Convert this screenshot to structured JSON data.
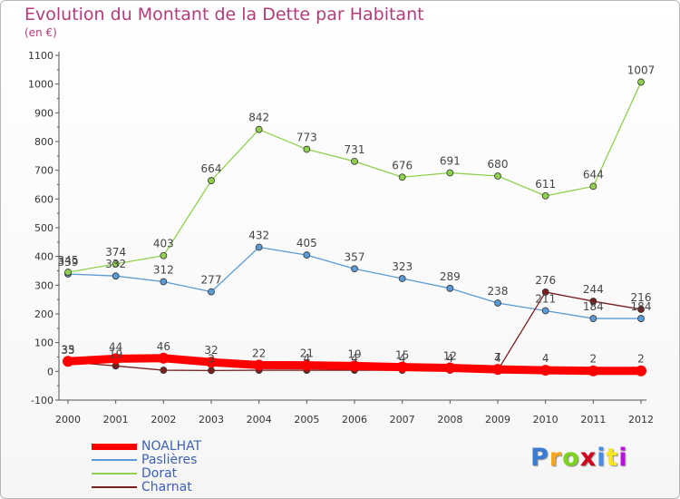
{
  "chart_data": {
    "type": "line",
    "title": "Evolution du Montant de la Dette par Habitant",
    "unit_label": "(en €)",
    "x": [
      "2000",
      "2001",
      "2002",
      "2003",
      "2004",
      "2005",
      "2006",
      "2007",
      "2008",
      "2009",
      "2010",
      "2011",
      "2012"
    ],
    "y_ticks": [
      -100,
      0,
      100,
      200,
      300,
      400,
      500,
      600,
      700,
      800,
      900,
      1000,
      1100
    ],
    "ylim": [
      -100,
      1100
    ],
    "grid": false,
    "legend_position": "bottom-left",
    "series": [
      {
        "name": "NOALHAT",
        "color": "#ff0000",
        "values": [
          35,
          44,
          46,
          32,
          22,
          21,
          19,
          15,
          12,
          7,
          4,
          2,
          2
        ],
        "labels": [
          "35",
          "44",
          "46",
          "32",
          "22",
          "21",
          "19",
          "15",
          "12",
          "7",
          "4",
          "2",
          "2"
        ]
      },
      {
        "name": "Paslières",
        "color": "#5b9bd5",
        "values": [
          339,
          332,
          312,
          277,
          432,
          405,
          357,
          323,
          289,
          238,
          211,
          184,
          184
        ],
        "labels": [
          "339",
          "332",
          "312",
          "277",
          "432",
          "405",
          "357",
          "323",
          "289",
          "238",
          "211",
          "184",
          "184"
        ]
      },
      {
        "name": "Dorat",
        "color": "#8fd14f",
        "values": [
          345,
          374,
          403,
          664,
          842,
          773,
          731,
          676,
          691,
          680,
          611,
          644,
          1007
        ],
        "labels": [
          "345",
          "374",
          "403",
          "664",
          "842",
          "773",
          "731",
          "676",
          "691",
          "680",
          "611",
          "644",
          "1007"
        ]
      },
      {
        "name": "Charnat",
        "color": "#7a1f1f",
        "values": [
          33,
          19,
          4,
          3,
          4,
          4,
          4,
          4,
          4,
          4,
          276,
          244,
          216
        ],
        "labels": [
          "33",
          "19",
          "",
          "3",
          "",
          "4",
          "4",
          "4",
          "4",
          "4",
          "276",
          "244",
          "216"
        ]
      }
    ]
  },
  "brand": {
    "text": "Proxiti",
    "colors": [
      "#3a7bd5",
      "#f5a623",
      "#7ed321",
      "#d0021b",
      "#4a90e2",
      "#f8e71c",
      "#bd10e0"
    ]
  }
}
